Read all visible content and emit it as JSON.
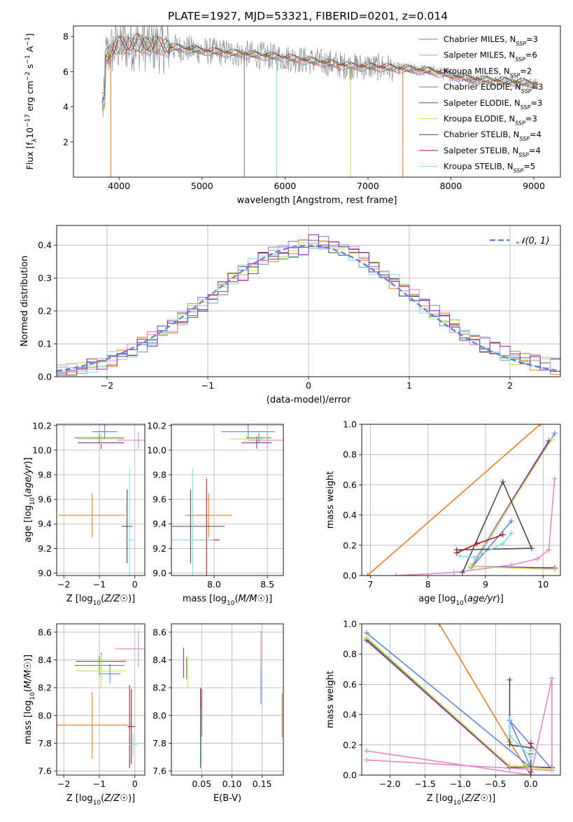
{
  "figure": {
    "title": "PLATE=1927, MJD=53321, FIBERID=0201, z=0.014"
  },
  "colors": {
    "Chabrier MILES": "#5e87dc",
    "Salpeter MILES": "#e289c6",
    "Kroupa MILES": "#ea7c23",
    "Chabrier ELODIE": "#4f9a3b",
    "Salpeter ELODIE": "#8a2bad",
    "Kroupa ELODIE": "#d3dc5c",
    "Chabrier STELIB": "#4b4b4b",
    "Salpeter STELIB": "#b01818",
    "Kroupa STELIB": "#7fdce8",
    "data": "#808080"
  },
  "chart_data": [
    {
      "id": "spectrum",
      "type": "line",
      "xlabel": "wavelength [Angstrom, rest frame]",
      "ylabel": "Flux [f_λ 10^-17 erg cm^-2 s^-1 A^-1]",
      "xlim": [
        3450,
        9320
      ],
      "ylim": [
        0,
        8.6
      ],
      "xticks": [
        4000,
        5000,
        6000,
        7000,
        8000,
        9000
      ],
      "yticks": [
        2,
        4,
        6,
        8
      ],
      "legend_position": "top-right",
      "legend": [
        {
          "name": "Chabrier MILES",
          "nssp": "3"
        },
        {
          "name": "Salpeter MILES",
          "nssp": "6"
        },
        {
          "name": "Kroupa MILES",
          "nssp": "2"
        },
        {
          "name": "Chabrier ELODIE",
          "nssp": "3"
        },
        {
          "name": "Salpeter ELODIE",
          "nssp": "3"
        },
        {
          "name": "Kroupa ELODIE",
          "nssp": "3"
        },
        {
          "name": "Chabrier STELIB",
          "nssp": "4"
        },
        {
          "name": "Salpeter STELIB",
          "nssp": "4"
        },
        {
          "name": "Kroupa STELIB",
          "nssp": "5"
        }
      ],
      "continuum": {
        "x": [
          3800,
          3900,
          4000,
          4200,
          4400,
          4600,
          5000,
          5500,
          6000,
          6500,
          6800,
          7000,
          7300,
          7600,
          7800,
          8000,
          8200,
          8500,
          8800,
          9000
        ],
        "y": [
          6.5,
          7.2,
          7.5,
          7.6,
          7.5,
          7.4,
          7.2,
          7.0,
          6.8,
          6.5,
          6.3,
          6.3,
          6.2,
          6.1,
          6.0,
          5.8,
          5.6,
          5.5,
          5.4,
          5.3
        ]
      },
      "dips": [
        {
          "x": 3900,
          "y": 0.0,
          "series": "Kroupa MILES"
        },
        {
          "x": 5510,
          "y": 0.0,
          "series": "data"
        },
        {
          "x": 5900,
          "y": 0.0,
          "series": "Kroupa STELIB"
        },
        {
          "x": 6790,
          "y": 0.0,
          "series": "Kroupa ELODIE"
        },
        {
          "x": 7420,
          "y": 0.0,
          "series": "Kroupa MILES"
        }
      ]
    },
    {
      "id": "residuals",
      "type": "histogram",
      "xlabel": "(data-model)/error",
      "ylabel": "Normed distribution",
      "xlim": [
        -2.5,
        2.5
      ],
      "ylim": [
        0,
        0.46
      ],
      "xticks": [
        -2,
        -1,
        0,
        1,
        2
      ],
      "yticks": [
        0.0,
        0.1,
        0.2,
        0.3,
        0.4
      ],
      "grid": true,
      "legend_position": "top-right",
      "reference_curve": {
        "name": "𝒩(0, 1)",
        "mu": 0,
        "sigma": 1,
        "style": "dashed"
      },
      "bin_width": 0.1
    },
    {
      "id": "age-vs-Z",
      "type": "errorbar",
      "xlabel": "Z [log10(Z/Z☉)]",
      "ylabel": "age  [log10(age/yr)]",
      "xlim": [
        -2.2,
        0.28
      ],
      "ylim": [
        8.98,
        10.21
      ],
      "xticks": [
        -2,
        -1,
        0
      ],
      "yticks": [
        9.0,
        9.2,
        9.4,
        9.6,
        9.8,
        10.0,
        10.2
      ],
      "grid": true,
      "points": [
        {
          "series": "Chabrier MILES",
          "x": -0.85,
          "y": 10.15,
          "xerr": 0.35,
          "yerr": 0.06
        },
        {
          "series": "Salpeter MILES",
          "x": 0.1,
          "y": 10.08,
          "xerr": 0.6,
          "yerr": 0.07
        },
        {
          "series": "Kroupa MILES",
          "x": -1.2,
          "y": 9.47,
          "xerr": 0.95,
          "yerr": 0.18
        },
        {
          "series": "Chabrier ELODIE",
          "x": -1.0,
          "y": 10.1,
          "xerr": 0.7,
          "yerr": 0.04
        },
        {
          "series": "Salpeter ELODIE",
          "x": -0.95,
          "y": 10.06,
          "xerr": 0.65,
          "yerr": 0.05
        },
        {
          "series": "Kroupa ELODIE",
          "x": -0.95,
          "y": 10.09,
          "xerr": 0.65,
          "yerr": 0.04
        },
        {
          "series": "Chabrier STELIB",
          "x": -0.22,
          "y": 9.38,
          "xerr": 0.15,
          "yerr": 0.3
        },
        {
          "series": "Kroupa STELIB",
          "x": -0.15,
          "y": 9.27,
          "xerr": 0.12,
          "yerr": 0.58
        }
      ]
    },
    {
      "id": "age-vs-mass",
      "type": "errorbar",
      "xlabel": "mass [log10(M/M☉)]",
      "ylabel": "",
      "xlim": [
        7.6,
        8.65
      ],
      "ylim": [
        8.98,
        10.21
      ],
      "xticks": [
        8.0,
        8.5
      ],
      "yticks": [
        9.0,
        9.2,
        9.4,
        9.6,
        9.8,
        10.0,
        10.2
      ],
      "grid": true,
      "points": [
        {
          "series": "Chabrier MILES",
          "x": 8.32,
          "y": 10.15,
          "xerr": 0.25,
          "yerr": 0.06
        },
        {
          "series": "Salpeter MILES",
          "x": 8.5,
          "y": 10.08,
          "xerr": 0.18,
          "yerr": 0.07
        },
        {
          "series": "Kroupa MILES",
          "x": 7.95,
          "y": 9.47,
          "xerr": 0.22,
          "yerr": 0.18
        },
        {
          "series": "Chabrier ELODIE",
          "x": 8.42,
          "y": 10.1,
          "xerr": 0.12,
          "yerr": 0.04
        },
        {
          "series": "Salpeter ELODIE",
          "x": 8.4,
          "y": 10.06,
          "xerr": 0.14,
          "yerr": 0.05
        },
        {
          "series": "Kroupa ELODIE",
          "x": 8.3,
          "y": 10.09,
          "xerr": 0.16,
          "yerr": 0.04
        },
        {
          "series": "Chabrier STELIB",
          "x": 7.78,
          "y": 9.38,
          "xerr": 0.32,
          "yerr": 0.3
        },
        {
          "series": "Salpeter STELIB",
          "x": 7.93,
          "y": 9.27,
          "xerr": 0.12,
          "yerr": 0.5
        },
        {
          "series": "Kroupa STELIB",
          "x": 7.8,
          "y": 9.27,
          "xerr": 0.2,
          "yerr": 0.58
        }
      ]
    },
    {
      "id": "massweight-vs-age",
      "type": "line",
      "xlabel": "age  [log10(age/yr)]",
      "ylabel": "mass weight",
      "xlim": [
        6.85,
        10.3
      ],
      "ylim": [
        0,
        1.0
      ],
      "xticks": [
        7,
        8,
        9,
        10
      ],
      "yticks": [
        0.0,
        0.2,
        0.4,
        0.6,
        0.8,
        1.0
      ],
      "grid": true,
      "series": [
        {
          "name": "Kroupa MILES",
          "x": [
            6.95,
            9.95
          ],
          "y": [
            0.0,
            1.0
          ]
        },
        {
          "name": "Chabrier MILES",
          "x": [
            10.2,
            8.75,
            9.45
          ],
          "y": [
            0.94,
            0.05,
            0.36
          ]
        },
        {
          "name": "Salpeter MILES",
          "x": [
            7.45,
            8.45,
            9.45,
            9.9,
            10.1,
            10.2
          ],
          "y": [
            0.0,
            0.02,
            0.07,
            0.11,
            0.17,
            0.64
          ]
        },
        {
          "name": "Chabrier ELODIE",
          "x": [
            10.1,
            8.75,
            10.2
          ],
          "y": [
            0.89,
            0.06,
            0.05
          ]
        },
        {
          "name": "Salpeter ELODIE",
          "x": [
            10.1,
            8.75,
            10.2
          ],
          "y": [
            0.89,
            0.06,
            0.05
          ]
        },
        {
          "name": "Kroupa ELODIE",
          "x": [
            10.15,
            8.75,
            10.2
          ],
          "y": [
            0.9,
            0.06,
            0.04
          ]
        },
        {
          "name": "Chabrier STELIB",
          "x": [
            8.6,
            9.3,
            9.8,
            8.5
          ],
          "y": [
            0.02,
            0.62,
            0.18,
            0.17
          ]
        },
        {
          "name": "Salpeter STELIB",
          "x": [
            8.5,
            8.85,
            9.3
          ],
          "y": [
            0.15,
            0.21,
            0.27
          ]
        },
        {
          "name": "Kroupa STELIB",
          "x": [
            8.55,
            8.8,
            9.3,
            9.45
          ],
          "y": [
            0.13,
            0.12,
            0.21,
            0.28
          ]
        }
      ]
    },
    {
      "id": "mass-vs-Z",
      "type": "errorbar",
      "xlabel": "Z [log10(Z/Z☉)]",
      "ylabel": "mass [log10(M/M☉)]",
      "xlim": [
        -2.2,
        0.28
      ],
      "ylim": [
        7.57,
        8.66
      ],
      "xticks": [
        -2,
        -1,
        0
      ],
      "yticks": [
        7.6,
        7.8,
        8.0,
        8.2,
        8.4,
        8.6
      ],
      "grid": true,
      "points": [
        {
          "series": "Chabrier MILES",
          "x": -0.7,
          "y": 8.3,
          "xerr": 0.3,
          "yerr": 0.07
        },
        {
          "series": "Salpeter MILES",
          "x": 0.1,
          "y": 8.48,
          "xerr": 0.65,
          "yerr": 0.13
        },
        {
          "series": "Kroupa MILES",
          "x": -1.2,
          "y": 7.93,
          "xerr": 1.0,
          "yerr": 0.24
        },
        {
          "series": "Chabrier ELODIE",
          "x": -1.0,
          "y": 8.36,
          "xerr": 0.7,
          "yerr": 0.07
        },
        {
          "series": "Salpeter ELODIE",
          "x": -0.95,
          "y": 8.39,
          "xerr": 0.7,
          "yerr": 0.06
        },
        {
          "series": "Kroupa ELODIE",
          "x": -0.95,
          "y": 8.32,
          "xerr": 0.7,
          "yerr": 0.12
        },
        {
          "series": "Chabrier STELIB",
          "x": -0.15,
          "y": 7.92,
          "xerr": 0.05,
          "yerr": 0.3
        },
        {
          "series": "Salpeter STELIB",
          "x": -0.1,
          "y": 7.92,
          "xerr": 0.1,
          "yerr": 0.27
        },
        {
          "series": "Kroupa STELIB",
          "x": -0.05,
          "y": 7.79,
          "xerr": 0.12,
          "yerr": 0.08
        }
      ]
    },
    {
      "id": "mass-vs-ebv",
      "type": "errorbar",
      "xlabel": "E(B-V)",
      "ylabel": "",
      "xlim": [
        0.0,
        0.185
      ],
      "ylim": [
        7.57,
        8.66
      ],
      "xticks": [
        0.05,
        0.1,
        0.15
      ],
      "yticks": [
        7.6,
        7.8,
        8.0,
        8.2,
        8.4,
        8.6
      ],
      "grid": true,
      "points": [
        {
          "series": "Chabrier MILES",
          "x": 0.148,
          "y": 8.3,
          "xerr": 0,
          "yerr": 0.22
        },
        {
          "series": "Salpeter MILES",
          "x": 0.148,
          "y": 8.48,
          "xerr": 0,
          "yerr": 0.13
        },
        {
          "series": "Kroupa MILES",
          "x": 0.183,
          "y": 8.0,
          "xerr": 0,
          "yerr": 0.16
        },
        {
          "series": "Chabrier ELODIE",
          "x": 0.025,
          "y": 8.34,
          "xerr": 0,
          "yerr": 0.08
        },
        {
          "series": "Salpeter ELODIE",
          "x": 0.02,
          "y": 8.38,
          "xerr": 0,
          "yerr": 0.11
        },
        {
          "series": "Kroupa ELODIE",
          "x": 0.027,
          "y": 8.31,
          "xerr": 0,
          "yerr": 0.12
        },
        {
          "series": "Chabrier STELIB",
          "x": 0.048,
          "y": 7.91,
          "xerr": 0,
          "yerr": 0.29
        },
        {
          "series": "Salpeter STELIB",
          "x": 0.05,
          "y": 8.02,
          "xerr": 0,
          "yerr": 0.17
        },
        {
          "series": "Kroupa STELIB",
          "x": 0.049,
          "y": 7.85,
          "xerr": 0,
          "yerr": 0.2
        }
      ]
    },
    {
      "id": "massweight-vs-Z",
      "type": "line",
      "xlabel": "Z [log10(Z/Z☉)]",
      "ylabel": "mass weight",
      "xlim": [
        -2.4,
        0.42
      ],
      "ylim": [
        0,
        1.0
      ],
      "xticks": [
        -2.0,
        -1.5,
        -1.0,
        -0.5,
        0.0
      ],
      "yticks": [
        0.0,
        0.2,
        0.4,
        0.6,
        0.8,
        1.0
      ],
      "grid": true,
      "series": [
        {
          "name": "Kroupa MILES",
          "x": [
            -1.3,
            -0.3,
            0.0
          ],
          "y": [
            1.0,
            0.22,
            0.0
          ]
        },
        {
          "name": "Chabrier MILES",
          "x": [
            -2.33,
            0.0,
            -0.3,
            0.3
          ],
          "y": [
            0.94,
            0.05,
            0.36,
            0.04
          ]
        },
        {
          "name": "Salpeter MILES",
          "x": [
            -2.33,
            0.3,
            0.3,
            0.0,
            -2.33
          ],
          "y": [
            0.1,
            0.03,
            0.64,
            0.0,
            0.16
          ]
        },
        {
          "name": "Chabrier ELODIE",
          "x": [
            -2.33,
            -0.3,
            0.3
          ],
          "y": [
            0.9,
            0.06,
            0.05
          ]
        },
        {
          "name": "Salpeter ELODIE",
          "x": [
            -2.33,
            -0.3,
            0.3
          ],
          "y": [
            0.89,
            0.05,
            0.05
          ]
        },
        {
          "name": "Kroupa ELODIE",
          "x": [
            -2.33,
            -0.3,
            0.3
          ],
          "y": [
            0.91,
            0.06,
            0.04
          ]
        },
        {
          "name": "Chabrier STELIB",
          "x": [
            -0.3,
            -0.3,
            0.0,
            0.0
          ],
          "y": [
            0.63,
            0.2,
            0.18,
            0.02
          ]
        },
        {
          "name": "Salpeter STELIB",
          "x": [
            0.0,
            0.0
          ],
          "y": [
            0.21,
            0.14
          ]
        },
        {
          "name": "Kroupa STELIB",
          "x": [
            -0.3,
            -0.3,
            0.0,
            0.0
          ],
          "y": [
            0.37,
            0.26,
            0.12,
            0.16
          ]
        }
      ]
    }
  ]
}
